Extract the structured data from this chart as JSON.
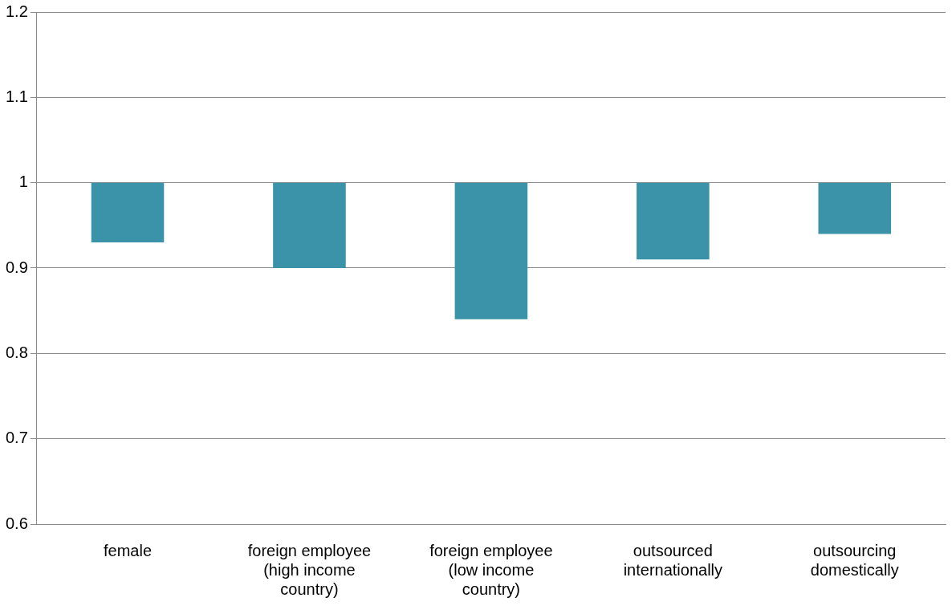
{
  "chart_data": {
    "type": "bar",
    "categories": [
      "female",
      "foreign employee (high income country)",
      "foreign employee (low income country)",
      "outsourced internationally",
      "outsourcing domestically"
    ],
    "values": [
      -0.07,
      -0.1,
      -0.16,
      -0.09,
      -0.06
    ],
    "base": [
      1,
      1,
      1,
      1,
      1
    ],
    "color": "#3a93a8",
    "ylim": [
      0.6,
      1.2
    ],
    "yticks": [
      0.6,
      0.7,
      0.8,
      0.9,
      1,
      1.1,
      1.2
    ],
    "grid": "y",
    "legend": false
  }
}
